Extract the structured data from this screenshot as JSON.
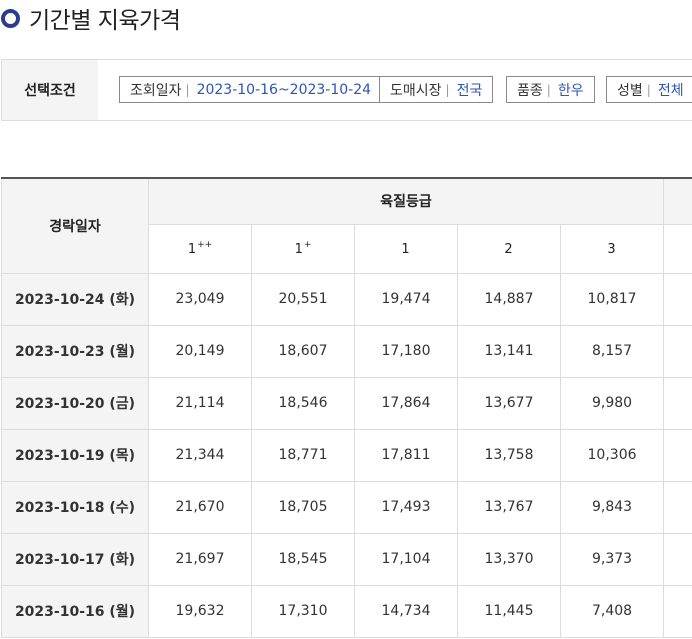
{
  "page": {
    "title": "기간별 지육가격"
  },
  "conditions": {
    "label": "선택조건",
    "items": [
      {
        "key": "조회일자",
        "value": "2023-10-16~2023-10-24"
      },
      {
        "key": "도매시장",
        "value": "전국"
      },
      {
        "key": "품종",
        "value": "한우"
      },
      {
        "key": "성별",
        "value": "전체"
      }
    ]
  },
  "table": {
    "date_header": "경락일자",
    "group_header": "육질등급",
    "grades": [
      {
        "base": "1",
        "sup": "++"
      },
      {
        "base": "1",
        "sup": "+"
      },
      {
        "base": "1",
        "sup": ""
      },
      {
        "base": "2",
        "sup": ""
      },
      {
        "base": "3",
        "sup": ""
      }
    ],
    "rows": [
      {
        "date": "2023-10-24 (화)",
        "values": [
          "23,049",
          "20,551",
          "19,474",
          "14,887",
          "10,817"
        ]
      },
      {
        "date": "2023-10-23 (월)",
        "values": [
          "20,149",
          "18,607",
          "17,180",
          "13,141",
          "8,157"
        ]
      },
      {
        "date": "2023-10-20 (금)",
        "values": [
          "21,114",
          "18,546",
          "17,864",
          "13,677",
          "9,980"
        ]
      },
      {
        "date": "2023-10-19 (목)",
        "values": [
          "21,344",
          "18,771",
          "17,811",
          "13,758",
          "10,306"
        ]
      },
      {
        "date": "2023-10-18 (수)",
        "values": [
          "21,670",
          "18,705",
          "17,493",
          "13,767",
          "9,843"
        ]
      },
      {
        "date": "2023-10-17 (화)",
        "values": [
          "21,697",
          "18,545",
          "17,104",
          "13,370",
          "9,373"
        ]
      },
      {
        "date": "2023-10-16 (월)",
        "values": [
          "19,632",
          "17,310",
          "14,734",
          "11,445",
          "7,408"
        ]
      }
    ]
  },
  "colors": {
    "accent": "#2d55b3",
    "title_icon": "#2b3c8f"
  }
}
